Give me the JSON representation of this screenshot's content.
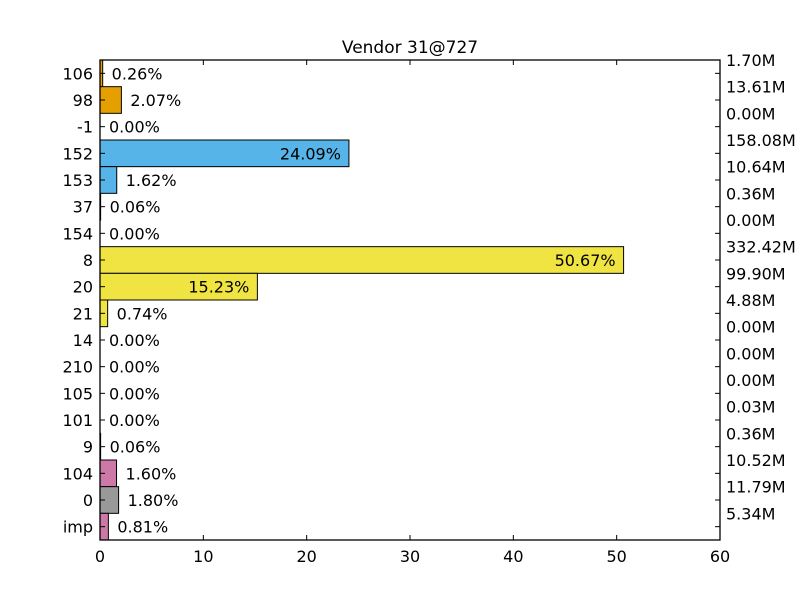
{
  "chart_data": {
    "type": "bar",
    "orientation": "horizontal",
    "title": "Vendor 31@727",
    "xlabel": "",
    "ylabel": "",
    "xlim": [
      0,
      60
    ],
    "x_ticks": [
      "0",
      "10",
      "20",
      "30",
      "40",
      "50",
      "60"
    ],
    "grid": false,
    "categories": [
      "106",
      "98",
      "-1",
      "152",
      "153",
      "37",
      "154",
      "8",
      "20",
      "21",
      "14",
      "210",
      "105",
      "101",
      "9",
      "104",
      "0",
      "imp"
    ],
    "values": [
      0.26,
      2.07,
      0.0,
      24.09,
      1.62,
      0.06,
      0.0,
      50.67,
      15.23,
      0.74,
      0.0,
      0.0,
      0.0,
      0.0,
      0.06,
      1.6,
      1.8,
      0.81
    ],
    "value_labels": [
      "0.26%",
      "2.07%",
      "0.00%",
      "24.09%",
      "1.62%",
      "0.06%",
      "0.00%",
      "50.67%",
      "15.23%",
      "0.74%",
      "0.00%",
      "0.00%",
      "0.00%",
      "0.00%",
      "0.06%",
      "1.60%",
      "1.80%",
      "0.81%"
    ],
    "right_labels": [
      "1.70M",
      "13.61M",
      "0.00M",
      "158.08M",
      "10.64M",
      "0.36M",
      "0.00M",
      "332.42M",
      "99.90M",
      "4.88M",
      "0.00M",
      "0.00M",
      "0.00M",
      "0.03M",
      "0.36M",
      "10.52M",
      "11.79M",
      "5.34M"
    ],
    "colors": [
      "#e69f00",
      "#e69f00",
      "#e69f00",
      "#56b4e9",
      "#56b4e9",
      "#56b4e9",
      "#f0e442",
      "#f0e442",
      "#f0e442",
      "#f0e442",
      "#f0e442",
      "#f0e442",
      "#f0e442",
      "#f0e442",
      "#f0e442",
      "#cc79a7",
      "#999999",
      "#cc79a7"
    ]
  }
}
